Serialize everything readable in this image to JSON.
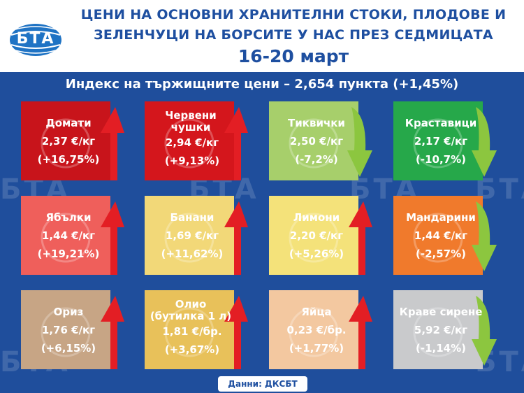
{
  "header": {
    "title_line1": "ЦЕНИ НА ОСНОВНИ ХРАНИТЕЛНИ СТОКИ, ПЛОДОВЕ И",
    "title_line2": "ЗЕЛЕНЧУЦИ НА БОРСИТЕ У НАС ПРЕЗ СЕДМИЦАТА",
    "date": "16-20 март",
    "logo_text": "БТА"
  },
  "index_text": "Индекс на тържищните цени – 2,654 пункта (+1,45%)",
  "watermark": "БТА",
  "colors": {
    "background": "#1f4e9c",
    "up_arrow": "#e31e24",
    "down_arrow": "#8cc63f"
  },
  "products": [
    {
      "name": "Домати",
      "price": "2,37 €/кг",
      "change": "(+16,75%)",
      "trend": "up",
      "color": "#c8141b",
      "icon": "tomato-icon"
    },
    {
      "name": "Червени чушки",
      "price": "2,94 €/кг",
      "change": "(+9,13%)",
      "trend": "up",
      "color": "#d4161c",
      "icon": "pepper-icon"
    },
    {
      "name": "Тиквички",
      "price": "2,50 €/кг",
      "change": "(-7,2%)",
      "trend": "down",
      "color": "#a7cf6b",
      "icon": "zucchini-icon"
    },
    {
      "name": "Краставици",
      "price": "2,17 €/кг",
      "change": "(-10,7%)",
      "trend": "down",
      "color": "#26a84a",
      "icon": "cucumber-icon"
    },
    {
      "name": "Ябълки",
      "price": "1,44 €/кг",
      "change": "(+19,21%)",
      "trend": "up",
      "color": "#ef5f5b",
      "icon": "apple-icon"
    },
    {
      "name": "Банани",
      "price": "1,69 €/кг",
      "change": "(+11,62%)",
      "trend": "up",
      "color": "#f2d878",
      "icon": "banana-icon"
    },
    {
      "name": "Лимони",
      "price": "2,20 €/кг",
      "change": "(+5,26%)",
      "trend": "up",
      "color": "#f4e27a",
      "icon": "lemon-icon"
    },
    {
      "name": "Мандарини",
      "price": "1,44 €/кг",
      "change": "(-2,57%)",
      "trend": "down",
      "color": "#f07a2c",
      "icon": "mandarin-icon"
    },
    {
      "name": "Ориз",
      "price": "1,76 €/кг",
      "change": "(+6,15%)",
      "trend": "up",
      "color": "#c7a585",
      "icon": "rice-icon"
    },
    {
      "name": "Олио (бутилка 1 л)",
      "price": "1,81 €/бр.",
      "change": "(+3,67%)",
      "trend": "up",
      "color": "#e8c15a",
      "icon": "oil-bottle-icon"
    },
    {
      "name": "Яйца",
      "price": "0,23 €/бр.",
      "change": "(+1,77%)",
      "trend": "up",
      "color": "#f3c8a0",
      "icon": "egg-icon"
    },
    {
      "name": "Краве сирене",
      "price": "5,92 €/кг",
      "change": "(-1,14%)",
      "trend": "down",
      "color": "#c9cacc",
      "icon": "cheese-icon"
    }
  ],
  "source": "Данни: ДКСБТ"
}
